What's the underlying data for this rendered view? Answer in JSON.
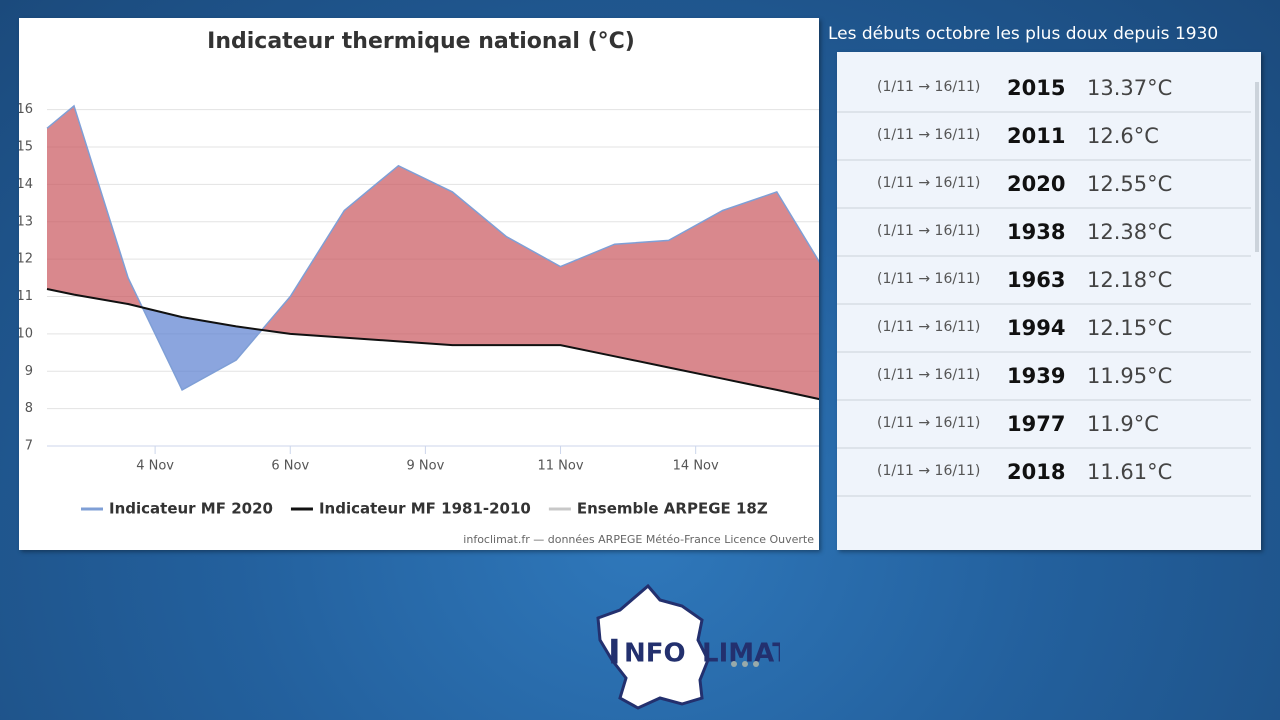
{
  "chart_data": {
    "type": "area-diff",
    "title": "Indicateur thermique national (°C)",
    "x": [
      0,
      1,
      3,
      5,
      7,
      9,
      11,
      13,
      15,
      17,
      19,
      21,
      23,
      25,
      27,
      28.6
    ],
    "series": [
      {
        "name": "Indicateur MF 2020",
        "color": "#7f9fd6",
        "values": [
          15.5,
          16.1,
          11.5,
          8.5,
          9.3,
          11.0,
          13.3,
          14.5,
          13.8,
          12.6,
          11.8,
          12.4,
          12.5,
          13.3,
          13.8,
          11.9
        ]
      },
      {
        "name": "Indicateur MF 1981-2010",
        "color": "#111111",
        "values": [
          11.2,
          11.05,
          10.8,
          10.45,
          10.2,
          10.0,
          9.9,
          9.8,
          9.7,
          9.7,
          9.7,
          9.4,
          9.1,
          8.8,
          8.5,
          8.25
        ]
      },
      {
        "name": "Ensemble ARPEGE 18Z",
        "color": "#c8c8c8",
        "values": [
          null,
          null,
          null,
          null,
          null,
          null,
          null,
          null,
          null,
          null,
          null,
          null,
          null,
          null,
          null,
          null
        ]
      }
    ],
    "above_color": "#c9555d",
    "below_color": "#5a7fd0",
    "xlim": [
      0,
      28.6
    ],
    "xticks": [
      {
        "value": 4,
        "label": "4 Nov"
      },
      {
        "value": 9,
        "label": "6 Nov"
      },
      {
        "value": 14,
        "label": "9 Nov"
      },
      {
        "value": 19,
        "label": "11 Nov"
      },
      {
        "value": 24,
        "label": "14 Nov"
      }
    ],
    "ylim": [
      7,
      16.9
    ],
    "yticks": [
      7,
      8,
      9,
      10,
      11,
      12,
      13,
      14,
      15,
      16
    ],
    "grid": true,
    "credit": "infoclimat.fr — données ARPEGE Météo-France Licence Ouverte"
  },
  "table": {
    "title": "Les débuts octobre les plus doux depuis 1930",
    "rows": [
      [
        "(1/11 → 16/11)",
        "2015",
        "13.37°C"
      ],
      [
        "(1/11 → 16/11)",
        "2011",
        "12.6°C"
      ],
      [
        "(1/11 → 16/11)",
        "2020",
        "12.55°C"
      ],
      [
        "(1/11 → 16/11)",
        "1938",
        "12.38°C"
      ],
      [
        "(1/11 → 16/11)",
        "1963",
        "12.18°C"
      ],
      [
        "(1/11 → 16/11)",
        "1994",
        "12.15°C"
      ],
      [
        "(1/11 → 16/11)",
        "1939",
        "11.95°C"
      ],
      [
        "(1/11 → 16/11)",
        "1977",
        "11.9°C"
      ],
      [
        "(1/11 → 16/11)",
        "2018",
        "11.61°C"
      ]
    ]
  },
  "logo": {
    "left": "NFO",
    "right": "LIMAT"
  }
}
